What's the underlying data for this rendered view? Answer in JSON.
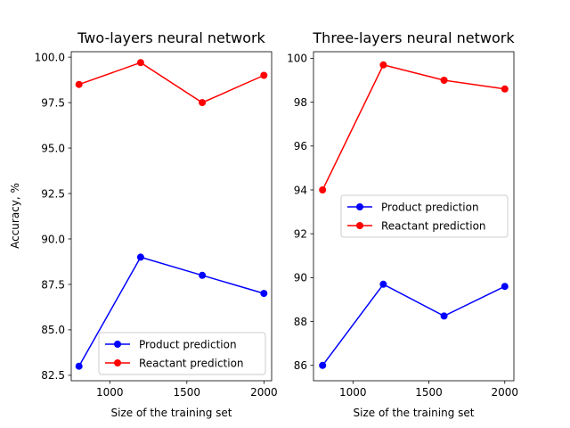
{
  "figure": {
    "ylabel": "Accuracy, %"
  },
  "chart_data": [
    {
      "type": "line",
      "title": "Two-layers neural network",
      "xlabel": "Size of the training set",
      "ylabel": "Accuracy, %",
      "x": [
        800,
        1200,
        1600,
        2000
      ],
      "xlim": [
        750,
        2050
      ],
      "ylim": [
        82.2,
        100.3
      ],
      "xticks": [
        "1000",
        "1500",
        "2000"
      ],
      "yticks": [
        "82.5",
        "85.0",
        "87.5",
        "90.0",
        "92.5",
        "95.0",
        "97.5",
        "100.0"
      ],
      "grid": false,
      "legend": "bottom-right",
      "series": [
        {
          "name": "Product prediction",
          "color": "#0000ff",
          "marker": "circle",
          "values": [
            83.0,
            89.0,
            88.0,
            87.0
          ]
        },
        {
          "name": "Reactant prediction",
          "color": "#ff0000",
          "marker": "circle",
          "values": [
            98.5,
            99.7,
            97.5,
            99.0
          ]
        }
      ]
    },
    {
      "type": "line",
      "title": "Three-layers neural network",
      "xlabel": "Size of the training set",
      "ylabel": "",
      "x": [
        800,
        1200,
        1600,
        2000
      ],
      "xlim": [
        740,
        2060
      ],
      "ylim": [
        85.3,
        100.3
      ],
      "xticks": [
        "1000",
        "1500",
        "2000"
      ],
      "yticks": [
        "86",
        "88",
        "90",
        "92",
        "94",
        "96",
        "98",
        "100"
      ],
      "grid": false,
      "legend": "center-right",
      "series": [
        {
          "name": "Product prediction",
          "color": "#0000ff",
          "marker": "circle",
          "values": [
            86.0,
            89.7,
            88.25,
            89.6
          ]
        },
        {
          "name": "Reactant prediction",
          "color": "#ff0000",
          "marker": "circle",
          "values": [
            94.0,
            99.7,
            99.0,
            98.6
          ]
        }
      ]
    }
  ]
}
